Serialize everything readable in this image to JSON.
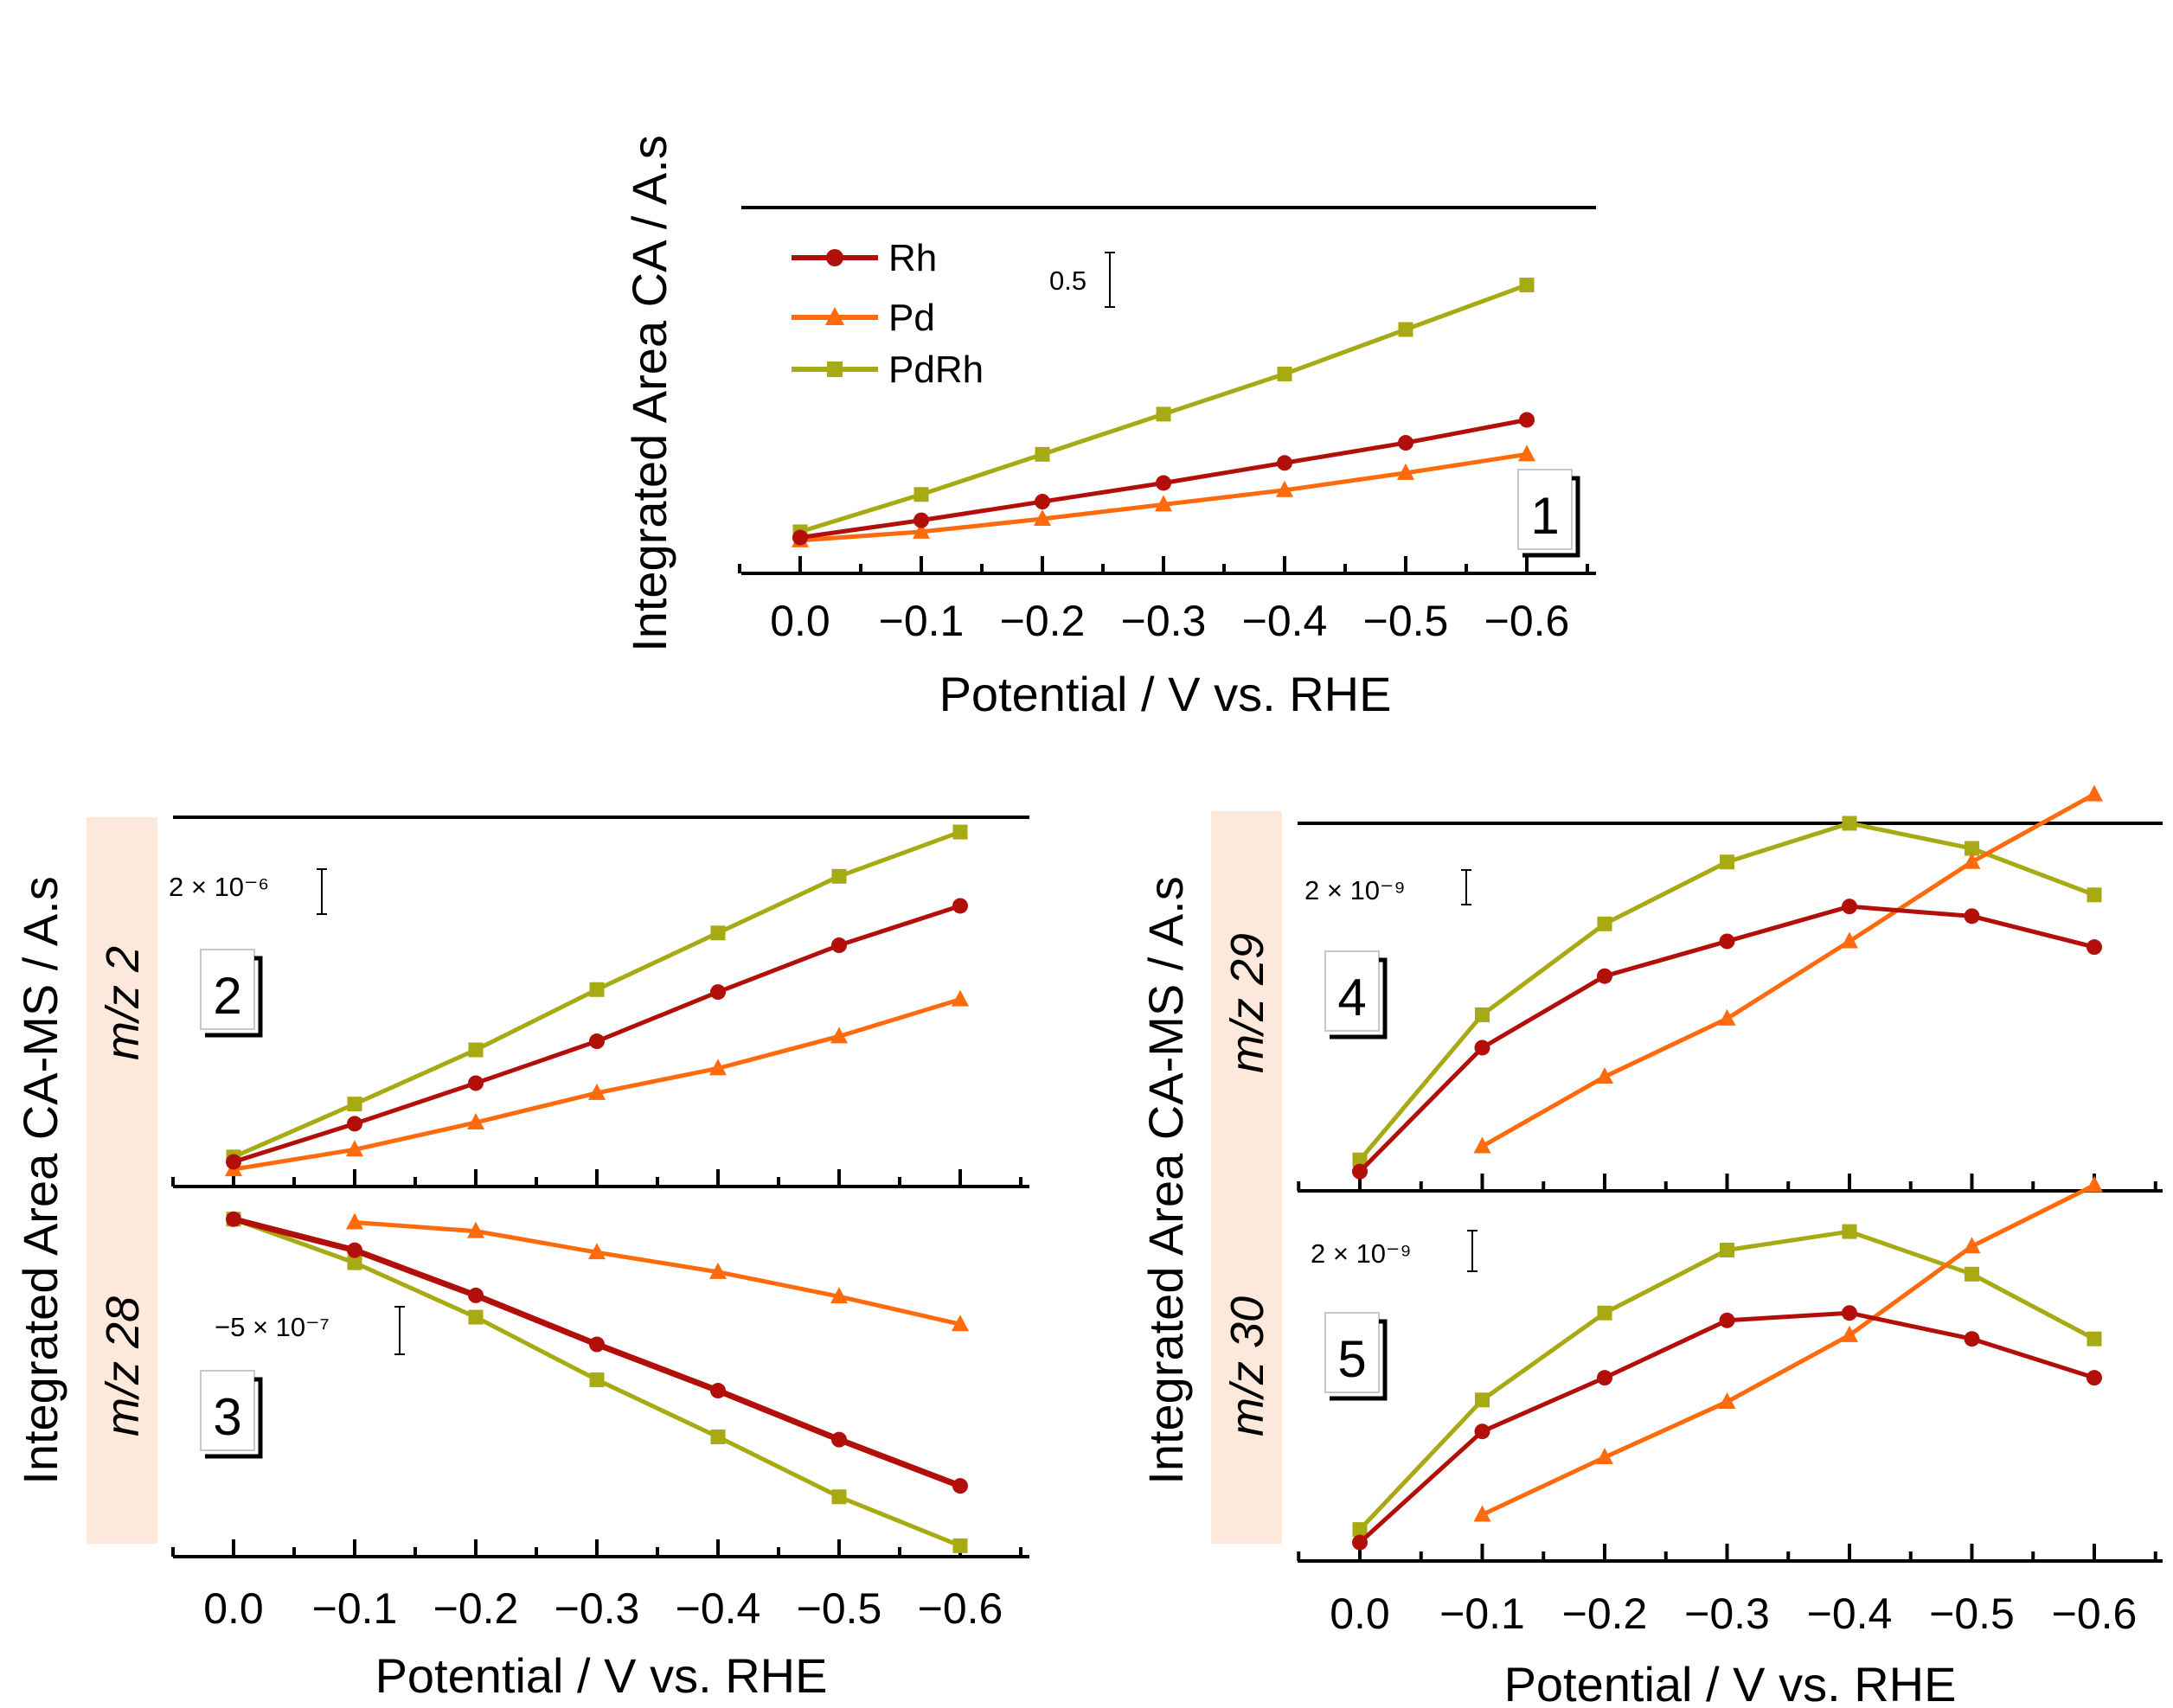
{
  "colors": {
    "Rh": "#b20f0a",
    "Pd": "#ff6a0d",
    "PdRh": "#a7aa12",
    "mz_band": "#fde9dc"
  },
  "legend": [
    {
      "key": "Rh",
      "label": "Rh",
      "marker": "circle"
    },
    {
      "key": "Pd",
      "label": "Pd",
      "marker": "triangle"
    },
    {
      "key": "PdRh",
      "label": "PdRh",
      "marker": "square"
    }
  ],
  "axis_titles": {
    "top_ylabel": "Integrated Area CA / A.s",
    "bottom_ylabel": "Integrated Area CA-MS / A.s",
    "xlabel": "Potential / V vs. RHE"
  },
  "x_tick_labels": [
    "0.0",
    "−0.1",
    "−0.2",
    "−0.3",
    "−0.4",
    "−0.5",
    "−0.6"
  ],
  "mz_labels": {
    "m2": "m/z 2",
    "m28": "m/z 28",
    "m29": "m/z 29",
    "m30": "m/z 30"
  },
  "chart_data": [
    {
      "id": "panel1",
      "type": "line",
      "panel_label": "1",
      "scale_bar": "0.5",
      "x": [
        0.0,
        -0.1,
        -0.2,
        -0.3,
        -0.4,
        -0.5,
        -0.6
      ],
      "ylim": [
        -0.25,
        2.3
      ],
      "series": [
        {
          "name": "Rh",
          "values": [
            0.0,
            0.12,
            0.25,
            0.38,
            0.52,
            0.66,
            0.82
          ]
        },
        {
          "name": "Pd",
          "values": [
            -0.02,
            0.04,
            0.13,
            0.23,
            0.33,
            0.45,
            0.58
          ]
        },
        {
          "name": "PdRh",
          "values": [
            0.04,
            0.3,
            0.58,
            0.86,
            1.14,
            1.45,
            1.76
          ]
        }
      ]
    },
    {
      "id": "panel2",
      "type": "line",
      "panel_label": "2",
      "scale_bar": "2 × 10⁻⁶",
      "x": [
        0.0,
        -0.1,
        -0.2,
        -0.3,
        -0.4,
        -0.5,
        -0.6
      ],
      "ylim": [
        -1e-06,
        1.4e-05
      ],
      "series": [
        {
          "name": "Rh",
          "values": [
            0.0,
            1.55e-06,
            3.2e-06,
            4.9e-06,
            6.9e-06,
            8.8e-06,
            1.04e-05
          ]
        },
        {
          "name": "Pd",
          "values": [
            -3e-07,
            5e-07,
            1.6e-06,
            2.8e-06,
            3.8e-06,
            5.1e-06,
            6.6e-06
          ]
        },
        {
          "name": "PdRh",
          "values": [
            2e-07,
            2.35e-06,
            4.55e-06,
            7e-06,
            9.3e-06,
            1.16e-05,
            1.34e-05
          ]
        }
      ]
    },
    {
      "id": "panel3",
      "type": "line",
      "panel_label": "3",
      "scale_bar": "−5 × 10⁻⁷",
      "x": [
        0.0,
        -0.1,
        -0.2,
        -0.3,
        -0.4,
        -0.5,
        -0.6
      ],
      "ylim": [
        -6.2e-06,
        6e-07
      ],
      "series": [
        {
          "name": "Rh",
          "values": [
            0.0,
            -5.7e-07,
            -1.4e-06,
            -2.3e-06,
            -3.15e-06,
            -4.05e-06,
            -4.9e-06
          ]
        },
        {
          "name": "Pd",
          "values": [
            null,
            -6e-08,
            -2.2e-07,
            -6.1e-07,
            -9.7e-07,
            -1.42e-06,
            -1.93e-06
          ]
        },
        {
          "name": "PdRh",
          "values": [
            0.0,
            -8e-07,
            -1.8e-06,
            -2.95e-06,
            -4e-06,
            -5.1e-06,
            -6e-06
          ]
        }
      ]
    },
    {
      "id": "panel4",
      "type": "line",
      "panel_label": "4",
      "scale_bar": "2 × 10⁻⁹",
      "x": [
        0.0,
        -0.1,
        -0.2,
        -0.3,
        -0.4,
        -0.5,
        -0.6
      ],
      "ylim": [
        -1e-09,
        1.8e-08
      ],
      "series": [
        {
          "name": "Rh",
          "values": [
            0.0,
            6.4e-09,
            1.01e-08,
            1.19e-08,
            1.37e-08,
            1.32e-08,
            1.16e-08
          ]
        },
        {
          "name": "Pd",
          "values": [
            null,
            1.3e-09,
            4.9e-09,
            7.9e-09,
            1.19e-08,
            1.6e-08,
            1.95e-08
          ]
        },
        {
          "name": "PdRh",
          "values": [
            6e-10,
            8.1e-09,
            1.28e-08,
            1.6e-08,
            1.8e-08,
            1.67e-08,
            1.43e-08
          ]
        }
      ]
    },
    {
      "id": "panel5",
      "type": "line",
      "panel_label": "5",
      "scale_bar": "2 × 10⁻⁹",
      "x": [
        0.0,
        -0.1,
        -0.2,
        -0.3,
        -0.4,
        -0.5,
        -0.6
      ],
      "ylim": [
        -1e-09,
        1.9e-08
      ],
      "series": [
        {
          "name": "Rh",
          "values": [
            0.0,
            6e-09,
            8.9e-09,
            1.2e-08,
            1.24e-08,
            1.1e-08,
            8.9e-09
          ]
        },
        {
          "name": "Pd",
          "values": [
            null,
            1.5e-09,
            4.6e-09,
            7.6e-09,
            1.12e-08,
            1.6e-08,
            1.93e-08
          ]
        },
        {
          "name": "PdRh",
          "values": [
            7e-10,
            7.7e-09,
            1.24e-08,
            1.58e-08,
            1.68e-08,
            1.45e-08,
            1.1e-08
          ]
        }
      ]
    }
  ]
}
